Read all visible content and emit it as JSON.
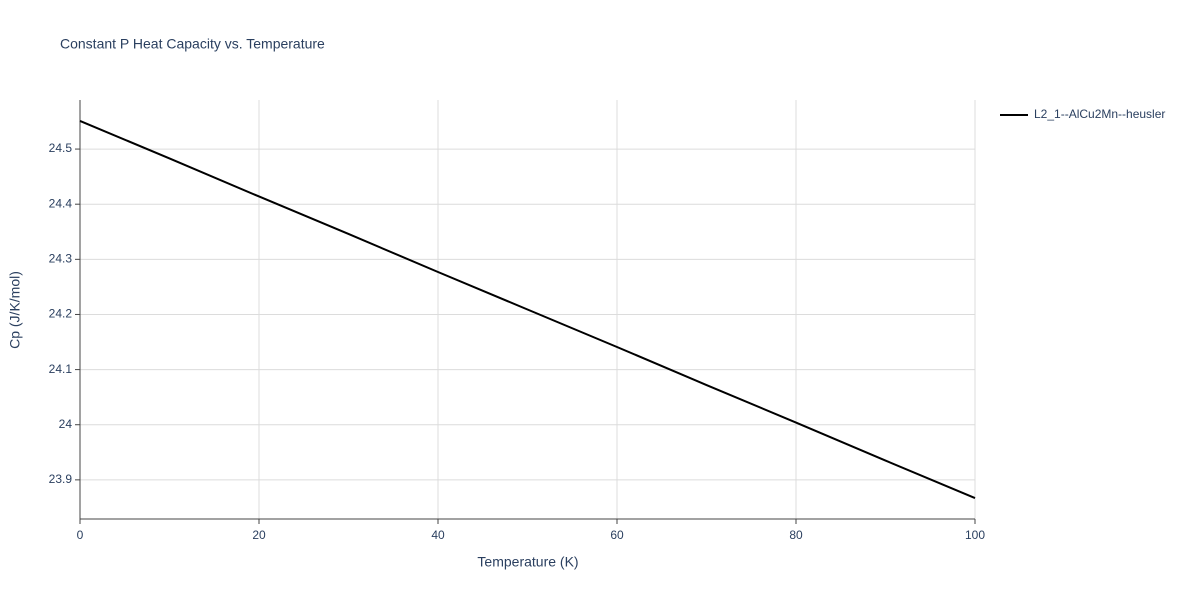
{
  "chart_data": {
    "type": "line",
    "title": "Constant P Heat Capacity vs. Temperature",
    "x_label": "Temperature (K)",
    "y_label": "Cp (J/K/mol)",
    "x": [
      0,
      10,
      20,
      30,
      40,
      50,
      60,
      70,
      80,
      90,
      100
    ],
    "series": [
      {
        "name": "L2_1--AlCu2Mn--heusler",
        "color": "#000000",
        "values": [
          24.551,
          24.483,
          24.414,
          24.346,
          24.277,
          24.209,
          24.141,
          24.072,
          24.004,
          23.935,
          23.867
        ]
      }
    ],
    "xlim": [
      0,
      100
    ],
    "xticks": [
      0,
      20,
      40,
      60,
      80,
      100
    ],
    "ylim": [
      23.829,
      24.589
    ],
    "yticks": [
      23.9,
      24,
      24.1,
      24.2,
      24.3,
      24.4,
      24.5
    ],
    "grid": true,
    "legend": "top-right"
  }
}
